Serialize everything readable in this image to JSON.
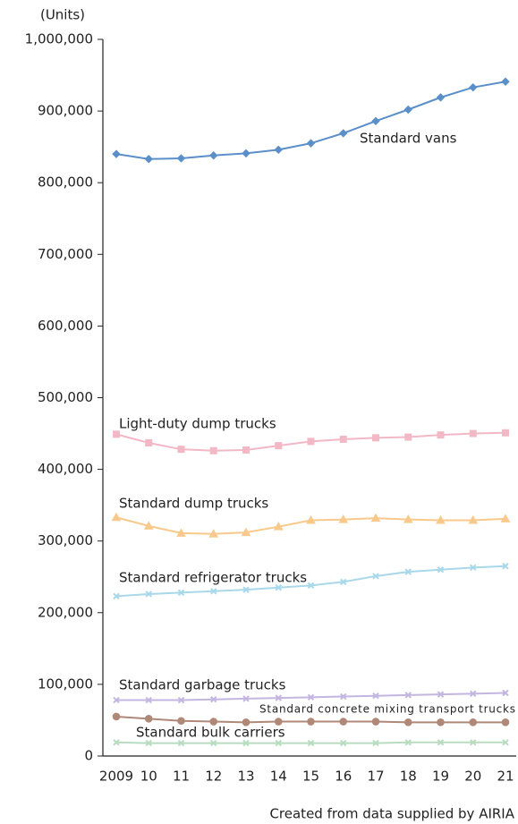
{
  "chart_data": {
    "type": "line",
    "unit_label": "(Units)",
    "note": "Created from data supplied by AIRIA",
    "categories": [
      "2009",
      "10",
      "11",
      "12",
      "13",
      "14",
      "15",
      "16",
      "17",
      "18",
      "19",
      "20",
      "21"
    ],
    "ylim": [
      0,
      1000000
    ],
    "yticks": [
      0,
      {
        "value": 100000,
        "label": "100,000"
      },
      {
        "value": 200000,
        "label": "200,000"
      },
      {
        "value": 300000,
        "label": "300,000"
      },
      {
        "value": 400000,
        "label": "400,000"
      },
      {
        "value": 500000,
        "label": "500,000"
      },
      {
        "value": 600000,
        "label": "600,000"
      },
      {
        "value": 700000,
        "label": "700,000"
      },
      {
        "value": 800000,
        "label": "800,000"
      },
      {
        "value": 900000,
        "label": "900,000"
      },
      {
        "value": 1000000,
        "label": "1,000,000"
      }
    ],
    "grid": false,
    "series": [
      {
        "name": "Standard vans",
        "color": "#5b8fc9",
        "values": [
          840000,
          833000,
          834000,
          838000,
          841000,
          846000,
          855000,
          869000,
          886000,
          902000,
          919000,
          933000,
          941000
        ]
      },
      {
        "name": "Light-duty dump trucks",
        "color": "#f2b8c6",
        "values": [
          449000,
          437000,
          428000,
          426000,
          427000,
          433000,
          439000,
          442000,
          444000,
          445000,
          448000,
          450000,
          451000
        ]
      },
      {
        "name": "Standard dump trucks",
        "color": "#f8c98a",
        "values": [
          333000,
          321000,
          311000,
          310000,
          312000,
          320000,
          329000,
          330000,
          332000,
          330000,
          329000,
          329000,
          331000
        ]
      },
      {
        "name": "Standard refrigerator trucks",
        "color": "#a8d8ea",
        "values": [
          223000,
          226000,
          228000,
          230000,
          232000,
          235000,
          238000,
          243000,
          251000,
          257000,
          260000,
          263000,
          265000
        ]
      },
      {
        "name": "Standard garbage trucks",
        "color": "#c3b6e0",
        "values": [
          78000,
          78000,
          78000,
          79000,
          80000,
          81000,
          82000,
          83000,
          84000,
          85000,
          86000,
          87000,
          88000
        ]
      },
      {
        "name": "Standard concrete mixing transport trucks",
        "color": "#b08878",
        "values": [
          55000,
          52000,
          49000,
          48000,
          47000,
          48000,
          48000,
          48000,
          48000,
          47000,
          47000,
          47000,
          47000
        ]
      },
      {
        "name": "Standard bulk carriers",
        "color": "#b8dcc0",
        "values": [
          19000,
          18000,
          18000,
          18000,
          18000,
          18000,
          18000,
          18000,
          18000,
          19000,
          19000,
          19000,
          19000
        ]
      }
    ]
  }
}
